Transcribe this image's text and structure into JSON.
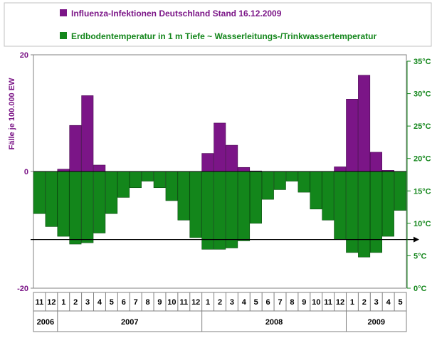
{
  "chart_data": {
    "type": "bar",
    "legend": [
      {
        "name": "Influenza-Infektionen Deutschland Stand 16.12.2009",
        "color": "#7b1587"
      },
      {
        "name": "Erdbodentemperatur in 1 m Tiefe ~ Wasserleitungs-/Trinkwassertemperatur",
        "color": "#13861b"
      }
    ],
    "left_axis": {
      "label": "Fälle je 100.000 EW",
      "ylim": [
        -20,
        20
      ],
      "ticks": [
        "20",
        "0",
        "-20"
      ],
      "color": "#7b1587"
    },
    "right_axis": {
      "ylim": [
        0,
        35
      ],
      "ticks": [
        "0°C",
        "5°C",
        "10°C",
        "15°C",
        "20°C",
        "25°C",
        "30°C",
        "35°C"
      ],
      "color": "#13861b"
    },
    "reference_line_temperature": 7.5,
    "months": [
      "11",
      "12",
      "1",
      "2",
      "3",
      "4",
      "5",
      "6",
      "7",
      "8",
      "9",
      "10",
      "11",
      "12",
      "1",
      "2",
      "3",
      "4",
      "5",
      "6",
      "7",
      "8",
      "9",
      "10",
      "11",
      "12",
      "1",
      "2",
      "3",
      "4",
      "5"
    ],
    "years": [
      {
        "label": "2006",
        "start": 0,
        "count": 2
      },
      {
        "label": "2007",
        "start": 2,
        "count": 12
      },
      {
        "label": "2008",
        "start": 14,
        "count": 12
      },
      {
        "label": "2009",
        "start": 26,
        "count": 5
      }
    ],
    "series": [
      {
        "name": "Influenza-Infektionen Deutschland Stand 16.12.2009",
        "axis": "left",
        "values": [
          0,
          0,
          0.4,
          7.9,
          13.0,
          1.1,
          0,
          0,
          0,
          0,
          0,
          0,
          0,
          0,
          3.1,
          8.3,
          4.5,
          0.7,
          0.1,
          0,
          0,
          0,
          0,
          0,
          0,
          0.8,
          12.4,
          16.5,
          3.3,
          0.2,
          0
        ]
      },
      {
        "name": "Erdbodentemperatur in 1 m Tiefe ~ Wasserleitungs-/Trinkwassertemperatur",
        "axis": "right",
        "values": [
          11.5,
          9.5,
          8.0,
          6.8,
          7.0,
          8.5,
          11.5,
          14.0,
          15.5,
          16.5,
          15.5,
          13.5,
          10.5,
          7.8,
          6.0,
          6.0,
          6.2,
          7.3,
          10.0,
          13.7,
          15.2,
          16.5,
          14.8,
          12.2,
          10.5,
          7.5,
          5.5,
          4.8,
          5.5,
          8.0,
          12.0
        ]
      }
    ]
  }
}
